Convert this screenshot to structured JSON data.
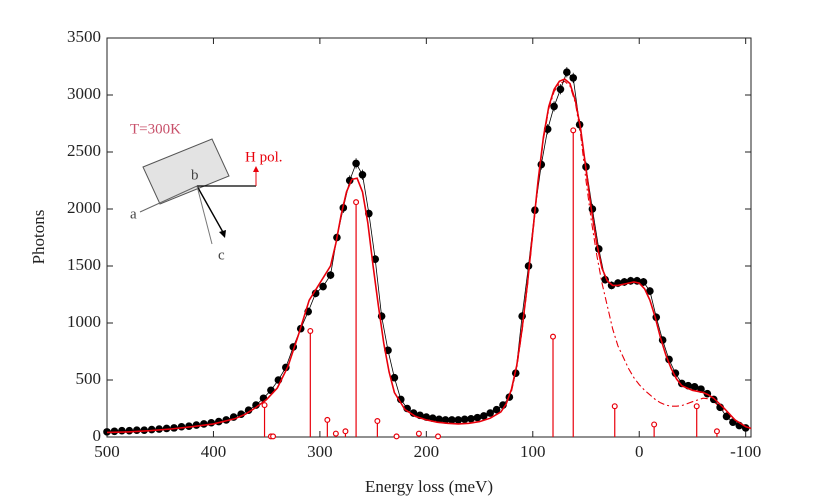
{
  "chart_data": {
    "type": "line",
    "xlabel": "Energy loss (meV)",
    "ylabel": "Photons",
    "xlim": [
      500,
      -105
    ],
    "ylim": [
      0,
      3500
    ],
    "xticks": [
      500,
      400,
      300,
      200,
      100,
      0,
      -100
    ],
    "yticks": [
      0,
      500,
      1000,
      1500,
      2000,
      2500,
      3000,
      3500
    ],
    "annotations": {
      "temperature": "T=300K",
      "polarization": "H pol.",
      "axis_a": "a",
      "axis_b": "b",
      "axis_c": "c"
    },
    "series": [
      {
        "style": "markers-line",
        "color": "#000000",
        "x": [
          500,
          493,
          486,
          479,
          472,
          465,
          458,
          451,
          444,
          437,
          430,
          423,
          416,
          409,
          402,
          395,
          388,
          381,
          374,
          367,
          360,
          353,
          346,
          339,
          332,
          325,
          318,
          311,
          304,
          297,
          290,
          284,
          278,
          272,
          266,
          260,
          254,
          248,
          242,
          236,
          230,
          224,
          218,
          212,
          206,
          200,
          194,
          188,
          182,
          176,
          170,
          164,
          158,
          152,
          146,
          140,
          134,
          128,
          122,
          116,
          110,
          104,
          98,
          92,
          86,
          80,
          74,
          68,
          62,
          56,
          50,
          44,
          38,
          32,
          26,
          20,
          14,
          8,
          2,
          -4,
          -10,
          -16,
          -22,
          -28,
          -34,
          -40,
          -46,
          -52,
          -58,
          -64,
          -70,
          -76,
          -82,
          -88,
          -94,
          -100
        ],
        "values": [
          45,
          50,
          55,
          55,
          60,
          60,
          65,
          70,
          75,
          80,
          90,
          95,
          105,
          115,
          125,
          135,
          150,
          175,
          200,
          235,
          280,
          340,
          410,
          500,
          610,
          790,
          950,
          1100,
          1260,
          1320,
          1420,
          1750,
          2010,
          2250,
          2400,
          2300,
          1960,
          1560,
          1060,
          760,
          520,
          330,
          250,
          210,
          190,
          175,
          165,
          155,
          150,
          150,
          150,
          155,
          160,
          170,
          185,
          210,
          240,
          280,
          350,
          560,
          1060,
          1500,
          1990,
          2390,
          2700,
          2900,
          3050,
          3200,
          3150,
          2740,
          2370,
          2000,
          1650,
          1380,
          1330,
          1350,
          1360,
          1370,
          1370,
          1360,
          1280,
          1050,
          850,
          680,
          560,
          470,
          450,
          440,
          420,
          380,
          330,
          260,
          180,
          130,
          100,
          80
        ],
        "errors": [
          10,
          10,
          10,
          10,
          10,
          10,
          10,
          10,
          10,
          10,
          10,
          10,
          10,
          10,
          10,
          10,
          10,
          10,
          20,
          20,
          20,
          20,
          20,
          20,
          20,
          20,
          20,
          35,
          35,
          35,
          35,
          35,
          45,
          45,
          45,
          45,
          35,
          35,
          35,
          20,
          20,
          20,
          20,
          20,
          10,
          10,
          10,
          10,
          10,
          10,
          10,
          10,
          10,
          10,
          10,
          20,
          20,
          20,
          20,
          20,
          35,
          35,
          35,
          45,
          45,
          45,
          45,
          45,
          45,
          45,
          45,
          45,
          35,
          35,
          35,
          35,
          35,
          35,
          35,
          35,
          35,
          35,
          20,
          20,
          20,
          20,
          20,
          20,
          20,
          20,
          20,
          20,
          10,
          10,
          10,
          10
        ]
      },
      {
        "style": "solid",
        "color": "#e8000b",
        "x": [
          500,
          480,
          460,
          440,
          420,
          400,
          380,
          370,
          360,
          350,
          340,
          330,
          320,
          310,
          300,
          290,
          285,
          280,
          275,
          270,
          265,
          260,
          255,
          250,
          245,
          240,
          235,
          230,
          220,
          210,
          200,
          190,
          180,
          170,
          160,
          150,
          140,
          130,
          125,
          120,
          115,
          110,
          105,
          100,
          95,
          90,
          85,
          80,
          75,
          70,
          65,
          60,
          55,
          50,
          45,
          40,
          35,
          30,
          25,
          20,
          10,
          5,
          0,
          -5,
          -10,
          -15,
          -20,
          -25,
          -30,
          -35,
          -40,
          -50,
          -60,
          -65,
          -70,
          -80,
          -90,
          -100,
          -105
        ],
        "values": [
          40,
          45,
          55,
          70,
          90,
          115,
          160,
          200,
          260,
          330,
          430,
          620,
          900,
          1200,
          1350,
          1500,
          1700,
          1950,
          2150,
          2260,
          2270,
          2150,
          1880,
          1500,
          1150,
          820,
          570,
          390,
          240,
          180,
          150,
          130,
          120,
          115,
          120,
          135,
          165,
          220,
          290,
          420,
          630,
          950,
          1350,
          1800,
          2250,
          2630,
          2900,
          3050,
          3120,
          3140,
          3100,
          2950,
          2700,
          2350,
          2000,
          1700,
          1480,
          1370,
          1330,
          1330,
          1350,
          1360,
          1350,
          1300,
          1200,
          1050,
          870,
          720,
          600,
          510,
          450,
          410,
          390,
          370,
          340,
          250,
          150,
          90,
          75
        ]
      },
      {
        "style": "dashdot",
        "color": "#e8000b",
        "x": [
          120,
          115,
          110,
          105,
          100,
          95,
          90,
          85,
          80,
          75,
          70,
          65,
          60,
          55,
          50,
          45,
          40,
          35,
          30,
          25,
          20,
          10,
          5,
          0,
          -5,
          -10,
          -15,
          -20,
          -25,
          -30,
          -35,
          -40,
          -50,
          -60,
          -65,
          -70,
          -80,
          -90,
          -100,
          -105
        ],
        "values": [
          400,
          610,
          930,
          1330,
          1780,
          2230,
          2610,
          2880,
          3030,
          3100,
          3120,
          3080,
          2930,
          2650,
          2250,
          1900,
          1600,
          1350,
          1150,
          950,
          800,
          600,
          520,
          460,
          410,
          370,
          330,
          300,
          280,
          270,
          270,
          275,
          310,
          340,
          335,
          310,
          230,
          140,
          85,
          70
        ]
      },
      {
        "style": "stem",
        "color": "#e8000b",
        "x": [
          352,
          346,
          344,
          309,
          293,
          285,
          276,
          266,
          246,
          228,
          207,
          189,
          81,
          62,
          23,
          -14,
          -54,
          -73
        ],
        "values": [
          280,
          5,
          5,
          930,
          150,
          30,
          50,
          2060,
          140,
          5,
          30,
          5,
          880,
          2690,
          270,
          110,
          270,
          50
        ]
      }
    ]
  }
}
